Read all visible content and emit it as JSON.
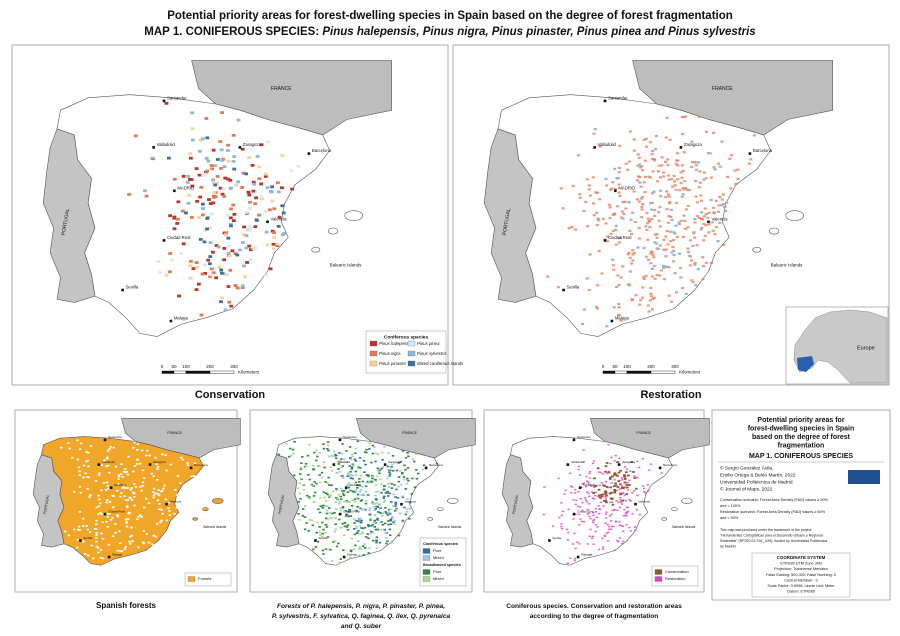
{
  "header": {
    "title": "Potential priority areas for forest-dwelling species in Spain based on the degree of forest fragmentation",
    "subtitle_prefix": "MAP 1. CONIFEROUS SPECIES: ",
    "subtitle_species": "Pinus halepensis, Pinus nigra, Pinus pinaster, Pinus pinea and Pinus sylvestris"
  },
  "places": {
    "france": "FRANCE",
    "portugal": "PORTUGAL",
    "balearic": "Balearic Islands",
    "cities": [
      "Santander",
      "Valladolid",
      "MADRID",
      "Zaragoza",
      "Barcelona",
      "Valencia",
      "Ciudad Real",
      "Sevilla",
      "Malaga"
    ]
  },
  "maps": [
    {
      "label": "Conservation"
    },
    {
      "label": "Restoration",
      "inset_label": "Europe"
    }
  ],
  "legend": {
    "title": "Coniferous species",
    "items": [
      {
        "name": "Pinus halepensis",
        "color": "#b8362a"
      },
      {
        "name": "Pinus nigra",
        "color": "#e07b5a"
      },
      {
        "name": "Pinus pinaster",
        "color": "#f6d49a"
      },
      {
        "name": "Pinus pinea",
        "color": "#d7e8f4"
      },
      {
        "name": "Pinus sylvestris",
        "color": "#8fb8d8"
      },
      {
        "name": "Mixed coniferous stands",
        "color": "#3f6f9f"
      }
    ]
  },
  "scale": {
    "labels": [
      "0",
      "50",
      "100",
      "200",
      "300"
    ],
    "unit": "Kilometers"
  },
  "panels": [
    {
      "caption": [
        "Spanish forests"
      ],
      "legend": [
        {
          "name": "Forests",
          "color": "#f0a628"
        }
      ]
    },
    {
      "caption": [
        "Forests of P. halepensis, P. nigra, P. pinaster, P. pinea,",
        "P. sylvestris, F. sylvatica, Q. faginea, Q. ilex, Q. pyrenaica",
        "and Q. suber"
      ],
      "legend": [
        {
          "group": "Coniferous species"
        },
        {
          "name": "Pure",
          "color": "#2f6fa8"
        },
        {
          "name": "Mixed",
          "color": "#9cc8e6"
        },
        {
          "group": "Broadleaved species"
        },
        {
          "name": "Pure",
          "color": "#2e8b3a"
        },
        {
          "name": "Mixed",
          "color": "#a9d88f"
        }
      ]
    },
    {
      "caption": [
        "Coniferous species. Conservation and restoration areas",
        "according to the degree of fragmentation"
      ],
      "legend": [
        {
          "name": "Conservation",
          "color": "#8b5a2b"
        },
        {
          "name": "Restoration",
          "color": "#e040c0"
        }
      ]
    }
  ],
  "info": {
    "title": [
      "Potential priority areas for",
      "forest-dwelling species in Spain",
      "based on the degree of forest",
      "fragmentation"
    ],
    "map": "MAP 1. CONIFEROUS SPECIES",
    "authors": [
      "© Sergio González Ávila,",
      "Emilio Ortega & Belén Martín, 2022",
      "Universidad Politécnica de Madrid",
      "© Journal of Maps, 2022"
    ],
    "notes": [
      "Conservation scenario: Forest Area Density (FAD) values ≥ 90%",
      "and < 100%",
      "Restoration scenario: Forest Area Density (FAD) values ≥ 60%",
      "and < 90%"
    ],
    "project": [
      "This map was produced under the framework of the project",
      "\"Herramientas Cartográficas para el Desarrollo Urbano y Regional",
      "Sostenible\" (RP220 0X X01_U29), funded by Universidad Politécnica",
      "de Madrid"
    ],
    "coords": [
      "COORDINATE SYSTEM",
      "ETRS89 UTM Zone 30N",
      "Projection: Transverse Mercator",
      "False Easting: 500,000; False Northing: 0",
      "Central Meridian: -3",
      "Scale Factor: 0.9996; Linear Unit: Meter",
      "Datum: ETRS89"
    ]
  }
}
